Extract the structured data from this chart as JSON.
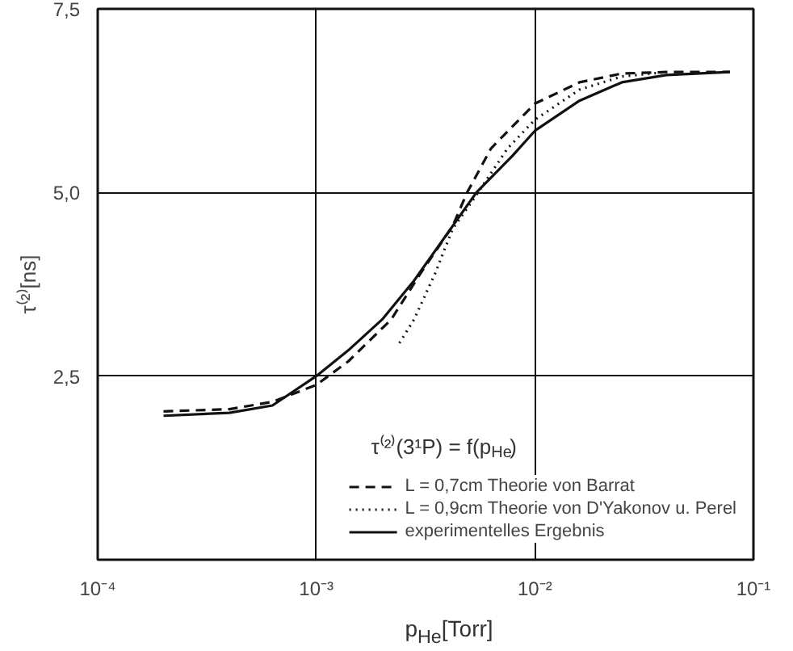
{
  "chart_data": {
    "type": "line",
    "xlabel": "p$_{He}$[Torr]",
    "ylabel": "τ⁽²⁾[ns]",
    "legend_title": "τ⁽²⁾(3¹P) = f(p$_{He}$)",
    "log": "x",
    "grid": true,
    "legend": "bottom right",
    "xlim": [
      0.0001,
      0.1
    ],
    "xticks": [
      {
        "value": 0.0001,
        "label": "10⁻⁴"
      },
      {
        "value": 0.001,
        "label": "10⁻³"
      },
      {
        "value": 0.01,
        "label": "10⁻²"
      },
      {
        "value": 0.1,
        "label": "10⁻¹"
      }
    ],
    "ylim": [
      0,
      7.5
    ],
    "yticks": [
      {
        "value": 2.5,
        "label": "2,5"
      },
      {
        "value": 5.0,
        "label": "5,0"
      },
      {
        "value": 7.5,
        "label": "7,5"
      }
    ],
    "series": [
      {
        "name": "L = 0,7cm Theorie von Barrat",
        "color": "#111111",
        "line_style": "dashed",
        "x": [
          0.0002,
          0.0004,
          0.00063,
          0.001,
          0.0014,
          0.0022,
          0.003,
          0.0042,
          0.0049,
          0.0063,
          0.01,
          0.016,
          0.025,
          0.04,
          0.078
        ],
        "values": [
          2.02,
          2.05,
          2.15,
          2.38,
          2.7,
          3.27,
          3.9,
          4.54,
          5.0,
          5.6,
          6.21,
          6.5,
          6.62,
          6.64,
          6.64
        ]
      },
      {
        "name": "L = 0,9cm Theorie von D'Yakonov u. Perel",
        "color": "#111111",
        "line_style": "dotted",
        "x": [
          0.0024,
          0.0028,
          0.0035,
          0.0042,
          0.0055,
          0.0075,
          0.01,
          0.016,
          0.025,
          0.04
        ],
        "values": [
          2.95,
          3.27,
          3.9,
          4.5,
          5.0,
          5.6,
          5.99,
          6.4,
          6.58,
          6.64
        ]
      },
      {
        "name": "experimentelles Ergebnis",
        "color": "#111111",
        "line_style": "solid",
        "x": [
          0.0002,
          0.0004,
          0.00063,
          0.001,
          0.0014,
          0.002,
          0.0028,
          0.0042,
          0.0054,
          0.0079,
          0.01,
          0.016,
          0.025,
          0.04,
          0.078
        ],
        "values": [
          1.96,
          2.0,
          2.1,
          2.5,
          2.85,
          3.27,
          3.8,
          4.54,
          5.0,
          5.5,
          5.84,
          6.25,
          6.5,
          6.6,
          6.64
        ]
      }
    ]
  }
}
